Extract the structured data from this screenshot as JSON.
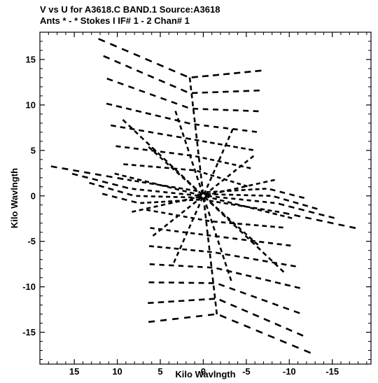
{
  "chart_data": {
    "type": "scatter",
    "title": "V vs U for A3618.C BAND.1   Source:A3618",
    "subtitle": "Ants * - *    Stokes I  IF# 1 - 2   Chan# 1",
    "xlabel": "Kilo Wavlngth",
    "ylabel": "Kilo Wavlngth",
    "xlim": [
      19,
      -19.5
    ],
    "ylim": [
      -18.5,
      18
    ],
    "x_reversed": true,
    "xticks": [
      15,
      10,
      5,
      0,
      -5,
      -10,
      -15
    ],
    "xtick_labels": [
      "15",
      "10",
      "5",
      "0",
      "-5",
      "-10",
      "-15"
    ],
    "yticks": [
      15,
      10,
      5,
      0,
      -5,
      -10,
      -15
    ],
    "ytick_labels": [
      "15",
      "10",
      "5",
      "0",
      "-5",
      "-10",
      "-15"
    ],
    "grid": false,
    "point_color": "#000000",
    "tracks": [
      {
        "name": "",
        "points": [
          [
            12.5,
            17.4
          ],
          [
            1.6,
            13.0
          ],
          [
            -7.0,
            13.8
          ]
        ]
      },
      {
        "name": "",
        "points": [
          [
            11.9,
            15.5
          ],
          [
            1.6,
            11.3
          ],
          [
            -6.8,
            11.6
          ]
        ]
      },
      {
        "name": "",
        "points": [
          [
            11.5,
            13.0
          ],
          [
            1.5,
            9.6
          ],
          [
            -6.7,
            9.3
          ]
        ]
      },
      {
        "name": "",
        "points": [
          [
            11.5,
            10.2
          ],
          [
            1.3,
            7.9
          ],
          [
            -6.5,
            7.0
          ]
        ]
      },
      {
        "name": "",
        "points": [
          [
            11.0,
            7.8
          ],
          [
            1.2,
            6.2
          ],
          [
            -6.0,
            5.0
          ]
        ]
      },
      {
        "name": "",
        "points": [
          [
            10.4,
            5.5
          ],
          [
            1.1,
            4.4
          ],
          [
            -5.7,
            3.0
          ]
        ]
      },
      {
        "name": "",
        "points": [
          [
            9.5,
            3.5
          ],
          [
            0.9,
            2.8
          ],
          [
            -5.3,
            1.0
          ]
        ]
      },
      {
        "name": "",
        "points": [
          [
            18.0,
            3.3
          ],
          [
            9.0,
            1.8
          ],
          [
            0.5,
            0.5
          ]
        ]
      },
      {
        "name": "",
        "points": [
          [
            15.5,
            2.5
          ],
          [
            8.5,
            0.8
          ],
          [
            0.3,
            0.0
          ]
        ]
      },
      {
        "name": "",
        "points": [
          [
            13.5,
            1.5
          ],
          [
            8.0,
            0.0
          ],
          [
            0.2,
            -0.2
          ]
        ]
      },
      {
        "name": "",
        "points": [
          [
            12.0,
            0.3
          ],
          [
            7.5,
            -0.8
          ],
          [
            0.2,
            -0.4
          ]
        ]
      },
      {
        "name": "",
        "points": [
          [
            -0.5,
            -0.5
          ],
          [
            -9.0,
            -1.8
          ],
          [
            -18.0,
            -3.6
          ]
        ]
      },
      {
        "name": "",
        "points": [
          [
            -0.3,
            0.0
          ],
          [
            -8.5,
            -0.8
          ],
          [
            -15.5,
            -2.5
          ]
        ]
      },
      {
        "name": "",
        "points": [
          [
            -0.2,
            0.2
          ],
          [
            -8.0,
            0.0
          ],
          [
            -13.5,
            -1.5
          ]
        ]
      },
      {
        "name": "",
        "points": [
          [
            -0.2,
            0.4
          ],
          [
            -7.5,
            0.8
          ],
          [
            -12.0,
            -0.3
          ]
        ]
      },
      {
        "name": "",
        "points": [
          [
            6.8,
            -1.5
          ],
          [
            -0.9,
            -2.8
          ],
          [
            -9.5,
            -3.5
          ]
        ]
      },
      {
        "name": "",
        "points": [
          [
            6.4,
            -3.5
          ],
          [
            -1.1,
            -4.4
          ],
          [
            -10.4,
            -5.5
          ]
        ]
      },
      {
        "name": "",
        "points": [
          [
            6.5,
            -5.5
          ],
          [
            -1.2,
            -6.2
          ],
          [
            -11.0,
            -7.8
          ]
        ]
      },
      {
        "name": "",
        "points": [
          [
            6.5,
            -7.5
          ],
          [
            -1.3,
            -7.9
          ],
          [
            -11.5,
            -10.2
          ]
        ]
      },
      {
        "name": "",
        "points": [
          [
            6.6,
            -9.5
          ],
          [
            -1.5,
            -9.6
          ],
          [
            -11.5,
            -13.0
          ]
        ]
      },
      {
        "name": "",
        "points": [
          [
            6.7,
            -11.8
          ],
          [
            -1.6,
            -11.3
          ],
          [
            -11.9,
            -15.5
          ]
        ]
      },
      {
        "name": "",
        "points": [
          [
            6.7,
            -13.9
          ],
          [
            -1.6,
            -13.0
          ],
          [
            -12.8,
            -17.4
          ]
        ]
      },
      {
        "name": "",
        "points": [
          [
            1.6,
            13.2
          ],
          [
            0.0,
            0.0
          ],
          [
            -1.6,
            -13.2
          ]
        ]
      },
      {
        "name": "",
        "points": [
          [
            3.3,
            9.5
          ],
          [
            0.0,
            0.0
          ],
          [
            -3.3,
            -9.5
          ]
        ]
      },
      {
        "name": "",
        "points": [
          [
            6.5,
            5.5
          ],
          [
            0.0,
            0.0
          ],
          [
            -6.5,
            -5.5
          ]
        ]
      },
      {
        "name": "",
        "points": [
          [
            9.5,
            8.5
          ],
          [
            0.0,
            0.0
          ],
          [
            -9.5,
            -8.5
          ]
        ]
      },
      {
        "name": "",
        "points": [
          [
            -3.5,
            7.5
          ],
          [
            0.0,
            0.0
          ],
          [
            3.5,
            -7.5
          ]
        ]
      },
      {
        "name": "",
        "points": [
          [
            -6.0,
            4.5
          ],
          [
            0.0,
            0.0
          ],
          [
            6.0,
            -4.5
          ]
        ]
      },
      {
        "name": "",
        "points": [
          [
            10.5,
            2.5
          ],
          [
            0.0,
            0.0
          ],
          [
            -10.5,
            -2.5
          ]
        ]
      },
      {
        "name": "",
        "points": [
          [
            -8.5,
            1.8
          ],
          [
            0.0,
            0.0
          ],
          [
            8.5,
            -1.8
          ]
        ]
      }
    ]
  }
}
